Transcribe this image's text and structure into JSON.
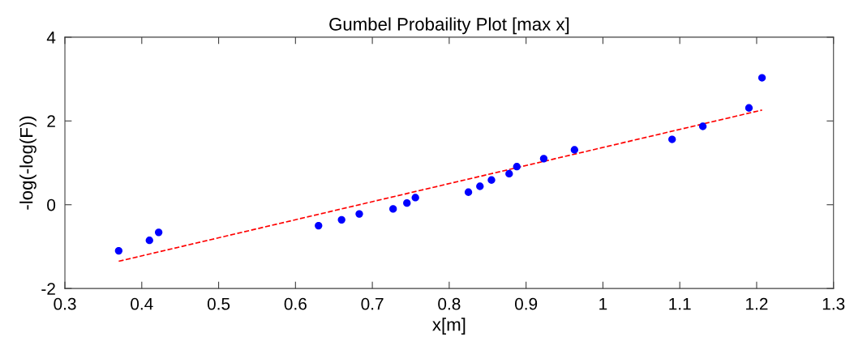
{
  "chart_data": {
    "type": "scatter",
    "title": "Gumbel Probaility Plot [max x]",
    "xlabel": "x[m]",
    "ylabel": "-log(-log(F))",
    "xlim": [
      0.3,
      1.3
    ],
    "xticks": [
      0.3,
      0.4,
      0.5,
      0.6,
      0.7,
      0.8,
      0.9,
      {
        "value": 1.0,
        "label": "1"
      },
      1.1,
      1.2,
      1.3
    ],
    "ylim": [
      -2,
      4
    ],
    "yticks": [
      -2,
      0,
      2,
      4
    ],
    "grid": false,
    "legend": false,
    "series": [
      {
        "color": "#0000ff",
        "marker": "circle",
        "x": [
          0.37,
          0.41,
          0.422,
          0.63,
          0.66,
          0.683,
          0.727,
          0.745,
          0.756,
          0.825,
          0.84,
          0.855,
          0.878,
          0.888,
          0.923,
          0.963,
          1.09,
          1.13,
          1.19,
          1.207
        ],
        "values": [
          -1.1,
          -0.85,
          -0.66,
          -0.5,
          -0.36,
          -0.22,
          -0.1,
          0.04,
          0.17,
          0.3,
          0.44,
          0.59,
          0.74,
          0.91,
          1.1,
          1.31,
          1.56,
          1.87,
          2.31,
          3.03
        ]
      },
      {
        "type": "line",
        "color": "#ff0000",
        "line_style": "dashed",
        "marker": "none",
        "x": [
          0.37,
          1.207
        ],
        "values": [
          -1.35,
          2.26
        ]
      }
    ]
  }
}
